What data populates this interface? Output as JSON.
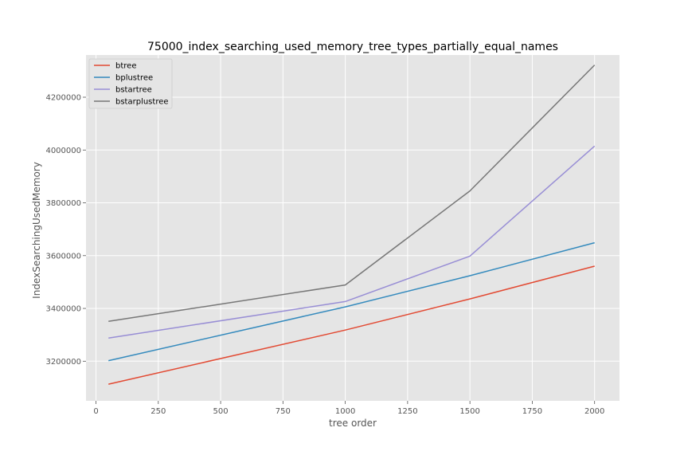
{
  "chart_data": {
    "type": "line",
    "title": "75000_index_searching_used_memory_tree_types_partially_equal_names",
    "xlabel": "tree order",
    "ylabel": "IndexSearchingUsedMemory",
    "x": [
      50,
      1000,
      1500,
      2000
    ],
    "xlim": [
      -40,
      2100
    ],
    "ylim": [
      3050000,
      4360000
    ],
    "xticks": [
      0,
      250,
      500,
      750,
      1000,
      1250,
      1500,
      1750,
      2000
    ],
    "yticks": [
      3200000,
      3400000,
      3600000,
      3800000,
      4000000,
      4200000
    ],
    "grid": true,
    "legend_position": "top-left",
    "series": [
      {
        "name": "btree",
        "color": "#E24A33",
        "values": [
          3113000,
          3318000,
          3436000,
          3560000
        ]
      },
      {
        "name": "bplustree",
        "color": "#348ABD",
        "values": [
          3202000,
          3406000,
          3524000,
          3649000
        ]
      },
      {
        "name": "bstartree",
        "color": "#988ED5",
        "values": [
          3288000,
          3426000,
          3598000,
          4015000
        ]
      },
      {
        "name": "bstarplustree",
        "color": "#777777",
        "values": [
          3351000,
          3489000,
          3845000,
          4322000
        ]
      }
    ]
  }
}
